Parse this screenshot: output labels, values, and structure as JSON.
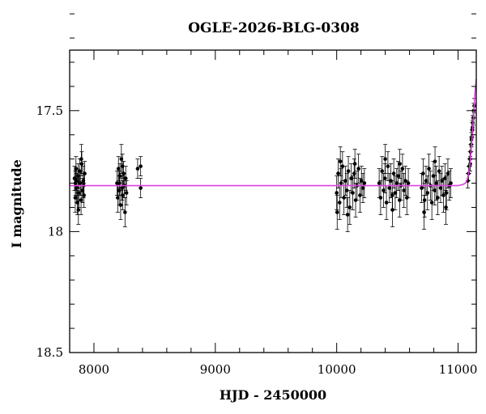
{
  "chart_data": {
    "type": "scatter",
    "title": "OGLE-2026-BLG-0308",
    "xlabel": "HJD - 2450000",
    "ylabel": "I magnitude",
    "xlim": [
      7800,
      11150
    ],
    "ylim": [
      17.25,
      18.5
    ],
    "y_inverted": true,
    "grid": false,
    "x_ticks": [
      {
        "value": 8000,
        "label": "8000"
      },
      {
        "value": 9000,
        "label": "9000"
      },
      {
        "value": 10000,
        "label": "10000"
      },
      {
        "value": 11000,
        "label": "11000"
      }
    ],
    "y_ticks": [
      {
        "value": 17.5,
        "label": "17.5"
      },
      {
        "value": 18.0,
        "label": "18"
      },
      {
        "value": 18.5,
        "label": "18.5"
      }
    ],
    "baseline_mag": 17.81,
    "colors": {
      "data": "#000000",
      "model": "#e040e0"
    },
    "series": [
      {
        "kind": "points_with_errorbars",
        "points": [
          [
            7840,
            17.78,
            0.05
          ],
          [
            7846,
            17.86,
            0.06
          ],
          [
            7852,
            17.74,
            0.05
          ],
          [
            7858,
            17.82,
            0.06
          ],
          [
            7864,
            17.88,
            0.05
          ],
          [
            7870,
            17.77,
            0.05
          ],
          [
            7876,
            17.84,
            0.06
          ],
          [
            7882,
            17.75,
            0.05
          ],
          [
            7888,
            17.8,
            0.05
          ],
          [
            7894,
            17.87,
            0.06
          ],
          [
            7900,
            17.72,
            0.05
          ],
          [
            7906,
            17.83,
            0.05
          ],
          [
            7912,
            17.79,
            0.06
          ],
          [
            7918,
            17.85,
            0.05
          ],
          [
            7924,
            17.76,
            0.05
          ],
          [
            7848,
            17.8,
            0.05
          ],
          [
            7872,
            17.91,
            0.06
          ],
          [
            7896,
            17.7,
            0.06
          ],
          [
            7915,
            17.81,
            0.05
          ],
          [
            7860,
            17.79,
            0.05
          ],
          [
            8190,
            17.8,
            0.05
          ],
          [
            8196,
            17.86,
            0.06
          ],
          [
            8202,
            17.74,
            0.05
          ],
          [
            8208,
            17.83,
            0.06
          ],
          [
            8214,
            17.77,
            0.05
          ],
          [
            8220,
            17.89,
            0.06
          ],
          [
            8226,
            17.7,
            0.06
          ],
          [
            8232,
            17.82,
            0.05
          ],
          [
            8238,
            17.85,
            0.06
          ],
          [
            8244,
            17.76,
            0.05
          ],
          [
            8250,
            17.81,
            0.05
          ],
          [
            8256,
            17.92,
            0.06
          ],
          [
            8262,
            17.78,
            0.05
          ],
          [
            8268,
            17.84,
            0.05
          ],
          [
            8210,
            17.8,
            0.05
          ],
          [
            8235,
            17.73,
            0.05
          ],
          [
            8360,
            17.74,
            0.04
          ],
          [
            8385,
            17.73,
            0.04
          ],
          [
            8385,
            17.82,
            0.04
          ],
          [
            10000,
            17.84,
            0.07
          ],
          [
            10012,
            17.76,
            0.06
          ],
          [
            10024,
            17.88,
            0.07
          ],
          [
            10036,
            17.8,
            0.06
          ],
          [
            10048,
            17.73,
            0.06
          ],
          [
            10060,
            17.86,
            0.07
          ],
          [
            10072,
            17.79,
            0.06
          ],
          [
            10084,
            17.83,
            0.07
          ],
          [
            10096,
            17.75,
            0.06
          ],
          [
            10108,
            17.9,
            0.07
          ],
          [
            10120,
            17.78,
            0.06
          ],
          [
            10132,
            17.84,
            0.07
          ],
          [
            10144,
            17.76,
            0.06
          ],
          [
            10156,
            17.87,
            0.07
          ],
          [
            10168,
            17.81,
            0.06
          ],
          [
            10180,
            17.74,
            0.06
          ],
          [
            10192,
            17.85,
            0.07
          ],
          [
            10204,
            17.79,
            0.06
          ],
          [
            10216,
            17.82,
            0.06
          ],
          [
            10228,
            17.8,
            0.06
          ],
          [
            10004,
            17.92,
            0.07
          ],
          [
            10030,
            17.71,
            0.06
          ],
          [
            10090,
            17.93,
            0.07
          ],
          [
            10150,
            17.72,
            0.06
          ],
          [
            10350,
            17.8,
            0.06
          ],
          [
            10362,
            17.86,
            0.07
          ],
          [
            10374,
            17.75,
            0.06
          ],
          [
            10386,
            17.83,
            0.07
          ],
          [
            10398,
            17.78,
            0.06
          ],
          [
            10410,
            17.88,
            0.07
          ],
          [
            10422,
            17.73,
            0.06
          ],
          [
            10434,
            17.82,
            0.06
          ],
          [
            10446,
            17.79,
            0.07
          ],
          [
            10458,
            17.85,
            0.06
          ],
          [
            10470,
            17.76,
            0.06
          ],
          [
            10482,
            17.84,
            0.07
          ],
          [
            10494,
            17.8,
            0.06
          ],
          [
            10506,
            17.77,
            0.06
          ],
          [
            10518,
            17.87,
            0.07
          ],
          [
            10530,
            17.81,
            0.06
          ],
          [
            10542,
            17.74,
            0.06
          ],
          [
            10554,
            17.83,
            0.07
          ],
          [
            10566,
            17.79,
            0.06
          ],
          [
            10578,
            17.86,
            0.07
          ],
          [
            10590,
            17.8,
            0.06
          ],
          [
            10400,
            17.7,
            0.06
          ],
          [
            10460,
            17.91,
            0.07
          ],
          [
            10520,
            17.72,
            0.06
          ],
          [
            10700,
            17.82,
            0.06
          ],
          [
            10712,
            17.76,
            0.06
          ],
          [
            10724,
            17.87,
            0.07
          ],
          [
            10736,
            17.79,
            0.06
          ],
          [
            10748,
            17.84,
            0.07
          ],
          [
            10760,
            17.74,
            0.06
          ],
          [
            10772,
            17.81,
            0.06
          ],
          [
            10784,
            17.88,
            0.07
          ],
          [
            10796,
            17.77,
            0.06
          ],
          [
            10808,
            17.83,
            0.06
          ],
          [
            10820,
            17.8,
            0.07
          ],
          [
            10832,
            17.86,
            0.07
          ],
          [
            10844,
            17.75,
            0.06
          ],
          [
            10856,
            17.82,
            0.06
          ],
          [
            10868,
            17.79,
            0.06
          ],
          [
            10880,
            17.85,
            0.07
          ],
          [
            10892,
            17.78,
            0.06
          ],
          [
            10904,
            17.84,
            0.07
          ],
          [
            10916,
            17.76,
            0.06
          ],
          [
            10928,
            17.81,
            0.06
          ],
          [
            10940,
            17.8,
            0.06
          ],
          [
            10720,
            17.92,
            0.07
          ],
          [
            10810,
            17.71,
            0.06
          ],
          [
            10900,
            17.9,
            0.07
          ],
          [
            11080,
            17.79,
            0.03
          ],
          [
            11086,
            17.76,
            0.03
          ],
          [
            11092,
            17.73,
            0.03
          ],
          [
            11098,
            17.7,
            0.03
          ],
          [
            11103,
            17.67,
            0.03
          ],
          [
            11108,
            17.64,
            0.03
          ],
          [
            11113,
            17.61,
            0.03
          ],
          [
            11117,
            17.58,
            0.03
          ],
          [
            11121,
            17.55,
            0.03
          ],
          [
            11125,
            17.53,
            0.03
          ],
          [
            11129,
            17.5,
            0.03
          ],
          [
            11133,
            17.48,
            0.03
          ],
          [
            11100,
            17.72,
            0.03
          ],
          [
            11110,
            17.62,
            0.03
          ],
          [
            11119,
            17.57,
            0.03
          ]
        ]
      },
      {
        "kind": "model_curve",
        "points": [
          [
            7800,
            17.81
          ],
          [
            10900,
            17.81
          ],
          [
            11000,
            17.81
          ],
          [
            11040,
            17.805
          ],
          [
            11060,
            17.8
          ],
          [
            11075,
            17.785
          ],
          [
            11090,
            17.75
          ],
          [
            11100,
            17.71
          ],
          [
            11110,
            17.65
          ],
          [
            11120,
            17.58
          ],
          [
            11130,
            17.5
          ],
          [
            11140,
            17.42
          ],
          [
            11150,
            17.37
          ]
        ]
      }
    ]
  }
}
